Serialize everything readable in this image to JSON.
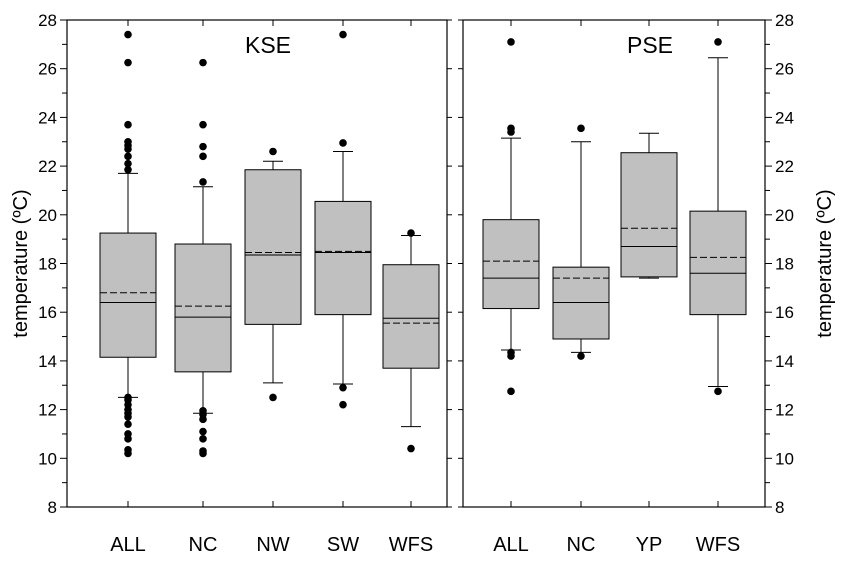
{
  "chart_data": {
    "type": "box",
    "y_range": [
      8,
      28
    ],
    "y_ticks": [
      8,
      10,
      12,
      14,
      16,
      18,
      20,
      22,
      24,
      26,
      28
    ],
    "legend": "none",
    "panels": [
      {
        "title": "KSE",
        "ylabel": "temperature (ºC)",
        "ylabel_side": "left",
        "categories": [
          "ALL",
          "NC",
          "NW",
          "SW",
          "WFS"
        ],
        "boxes": [
          {
            "name": "ALL",
            "whisker_low": 12.5,
            "q1": 14.15,
            "median": 16.4,
            "mean": 16.8,
            "q3": 19.25,
            "whisker_high": 21.7,
            "outliers": [
              10.2,
              10.35,
              10.8,
              11.0,
              11.4,
              11.7,
              11.85,
              12.0,
              12.2,
              12.4,
              12.5,
              21.85,
              22.1,
              22.4,
              22.7,
              22.85,
              23.0,
              23.7,
              26.25,
              27.4
            ]
          },
          {
            "name": "NC",
            "whisker_low": 11.85,
            "q1": 13.55,
            "median": 15.8,
            "mean": 16.25,
            "q3": 18.8,
            "whisker_high": 21.15,
            "outliers": [
              10.2,
              10.3,
              10.8,
              11.1,
              11.6,
              11.8,
              11.95,
              21.35,
              22.4,
              22.8,
              23.7,
              26.25
            ]
          },
          {
            "name": "NW",
            "whisker_low": 13.1,
            "q1": 15.5,
            "median": 18.35,
            "mean": 18.45,
            "q3": 21.85,
            "whisker_high": 22.2,
            "outliers": [
              12.5,
              22.6
            ]
          },
          {
            "name": "SW",
            "whisker_low": 13.05,
            "q1": 15.9,
            "median": 18.45,
            "mean": 18.5,
            "q3": 20.55,
            "whisker_high": 22.6,
            "outliers": [
              12.2,
              12.9,
              22.95,
              27.4
            ]
          },
          {
            "name": "WFS",
            "whisker_low": 11.3,
            "q1": 13.7,
            "median": 15.75,
            "mean": 15.55,
            "q3": 17.95,
            "whisker_high": 19.15,
            "outliers": [
              10.4,
              19.25
            ]
          }
        ]
      },
      {
        "title": "PSE",
        "ylabel": "temperature (ºC)",
        "ylabel_side": "right",
        "categories": [
          "ALL",
          "NC",
          "YP",
          "WFS"
        ],
        "boxes": [
          {
            "name": "ALL",
            "whisker_low": 14.45,
            "q1": 16.15,
            "median": 17.4,
            "mean": 18.1,
            "q3": 19.8,
            "whisker_high": 23.15,
            "outliers": [
              12.75,
              14.2,
              14.35,
              23.4,
              23.55,
              27.1
            ]
          },
          {
            "name": "NC",
            "whisker_low": 14.35,
            "q1": 14.9,
            "median": 16.4,
            "mean": 17.4,
            "q3": 17.85,
            "whisker_high": 23.0,
            "outliers": [
              14.2,
              23.55
            ]
          },
          {
            "name": "YP",
            "whisker_low": 17.4,
            "q1": 17.45,
            "median": 18.7,
            "mean": 19.45,
            "q3": 22.55,
            "whisker_high": 23.35,
            "outliers": []
          },
          {
            "name": "WFS",
            "whisker_low": 12.95,
            "q1": 15.9,
            "median": 17.6,
            "mean": 18.25,
            "q3": 20.15,
            "whisker_high": 26.45,
            "outliers": [
              12.75,
              27.1
            ]
          }
        ]
      }
    ]
  }
}
